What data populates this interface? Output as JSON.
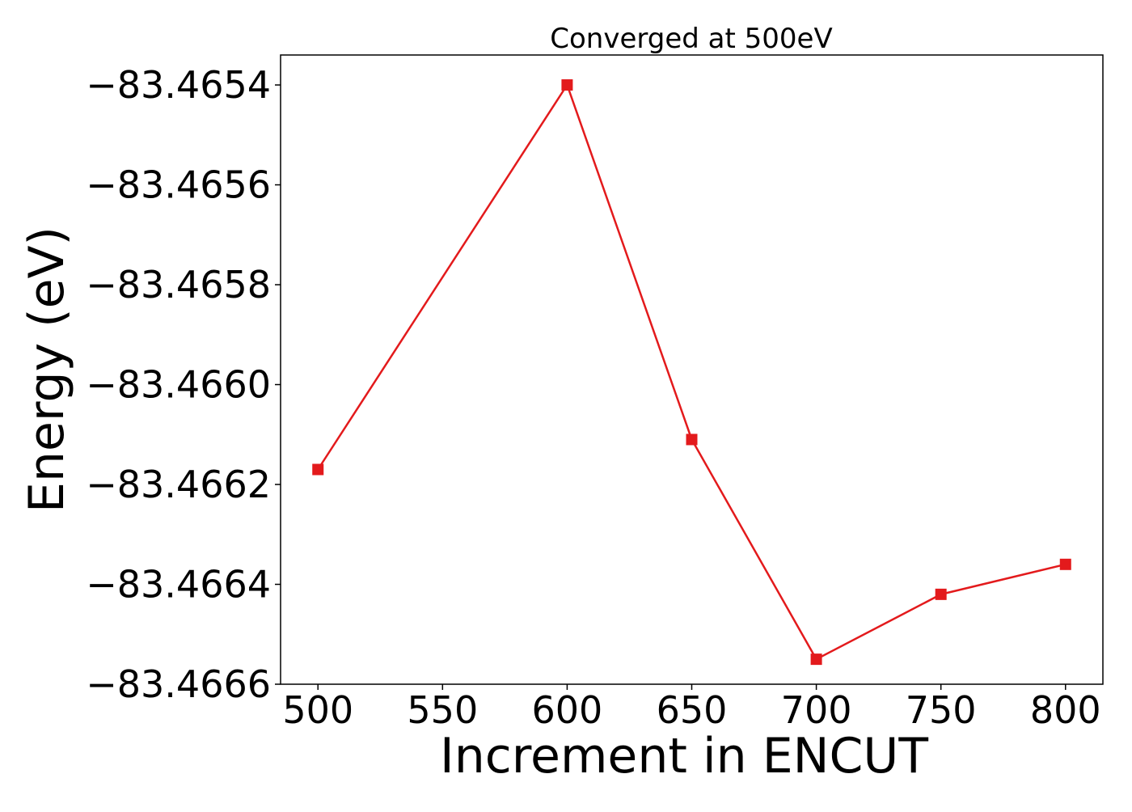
{
  "chart_data": {
    "type": "line",
    "title": "Converged at 500eV",
    "xlabel": "Increment in ENCUT",
    "ylabel": "Energy (eV)",
    "x": [
      500,
      600,
      650,
      700,
      750,
      800
    ],
    "series": [
      {
        "values": [
          -83.46617,
          -83.4654,
          -83.46611,
          -83.46655,
          -83.46642,
          -83.46636
        ],
        "color": "#e31a1c",
        "marker": "square"
      }
    ],
    "xticks": [
      500,
      550,
      600,
      650,
      700,
      750,
      800
    ],
    "xtick_labels": [
      "500",
      "550",
      "600",
      "650",
      "700",
      "750",
      "800"
    ],
    "yticks": [
      -83.4654,
      -83.4656,
      -83.4658,
      -83.466,
      -83.4662,
      -83.4664,
      -83.4666
    ],
    "ytick_labels": [
      "−83.4654",
      "−83.4656",
      "−83.4658",
      "−83.4660",
      "−83.4662",
      "−83.4664",
      "−83.4666"
    ],
    "xlim": [
      485,
      815
    ],
    "ylim": [
      -83.4666,
      -83.46534
    ],
    "grid": false,
    "legend": "none"
  }
}
